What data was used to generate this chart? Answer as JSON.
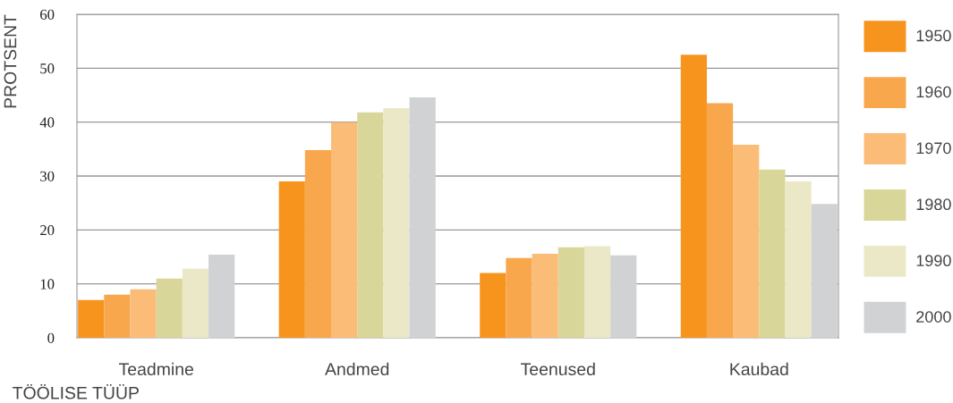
{
  "chart_data": {
    "type": "bar",
    "xlabel": "TÖÖLISE TÜÜP",
    "ylabel": "PROTSENT",
    "categories": [
      "Teadmine",
      "Andmed",
      "Teenused",
      "Kaubad"
    ],
    "series": [
      {
        "name": "1950",
        "color": "#f7941e",
        "values": [
          7,
          29,
          12,
          52.5
        ]
      },
      {
        "name": "1960",
        "color": "#f8a74c",
        "values": [
          8,
          34.8,
          14.8,
          43.5
        ]
      },
      {
        "name": "1970",
        "color": "#fbbc78",
        "values": [
          9,
          40,
          15.6,
          35.8
        ]
      },
      {
        "name": "1980",
        "color": "#d9d699",
        "values": [
          11,
          41.8,
          16.8,
          31.2
        ]
      },
      {
        "name": "1990",
        "color": "#ebe8c8",
        "values": [
          12.8,
          42.6,
          17,
          29
        ]
      },
      {
        "name": "2000",
        "color": "#d1d2d4",
        "values": [
          15.4,
          44.6,
          15.3,
          24.8
        ]
      }
    ],
    "ylim": [
      0,
      60
    ],
    "yticks": [
      0,
      10,
      20,
      30,
      40,
      50,
      60
    ],
    "grid": "y",
    "legend": "right"
  }
}
